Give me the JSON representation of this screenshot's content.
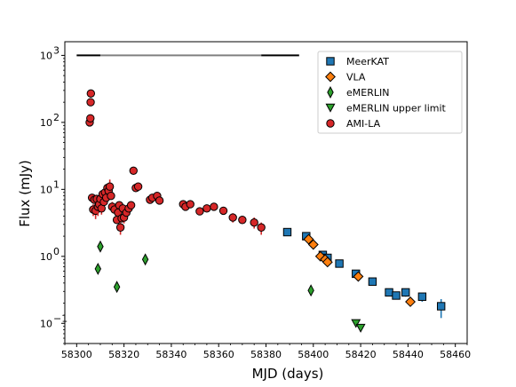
{
  "chart_data": {
    "type": "scatter",
    "title": "",
    "xlabel": "MJD (days)",
    "ylabel": "Flux (mJy)",
    "xlim": [
      58295,
      58465
    ],
    "ylim": [
      0.05,
      1600
    ],
    "yscale": "log",
    "x_ticks": [
      58300,
      58320,
      58340,
      58360,
      58380,
      58400,
      58420,
      58440,
      58460
    ],
    "x_tick_labels": [
      "58300",
      "58320",
      "58340",
      "58360",
      "58380",
      "58400",
      "58420",
      "58440",
      "58460"
    ],
    "y_ticks": [
      0.1,
      1,
      10,
      100,
      1000
    ],
    "y_tick_labels": [
      "10",
      "10",
      "10",
      "10",
      "10"
    ],
    "y_tick_exponents": [
      "−1",
      "0",
      "1",
      "2",
      "3"
    ],
    "grid": false,
    "legend_position": "top-right",
    "colors": {
      "meerkat": "#1f77b4",
      "vla": "#ff7f0e",
      "emerlin": "#2ca02c",
      "emerlin_upper": "#2ca02c",
      "amila": "#d62728",
      "coverage_dark": "#000000",
      "coverage_gray": "#808080"
    },
    "coverage_bar": {
      "y": 1000,
      "segments": [
        {
          "x0": 58300,
          "x1": 58310,
          "color": "coverage_dark"
        },
        {
          "x0": 58310,
          "x1": 58378,
          "color": "coverage_gray"
        },
        {
          "x0": 58378,
          "x1": 58394,
          "color": "coverage_dark"
        }
      ]
    },
    "series": [
      {
        "name": "MeerKAT",
        "marker": "square",
        "color_key": "meerkat",
        "points": [
          {
            "x": 58389,
            "y": 2.3
          },
          {
            "x": 58397,
            "y": 2.0
          },
          {
            "x": 58404,
            "y": 1.05
          },
          {
            "x": 58406,
            "y": 0.95
          },
          {
            "x": 58411,
            "y": 0.78
          },
          {
            "x": 58418,
            "y": 0.55
          },
          {
            "x": 58425,
            "y": 0.42
          },
          {
            "x": 58432,
            "y": 0.29
          },
          {
            "x": 58435,
            "y": 0.26
          },
          {
            "x": 58439,
            "y": 0.29,
            "err_lo": 0.04,
            "err_hi": 0.04
          },
          {
            "x": 58446,
            "y": 0.25,
            "err_lo": 0.04,
            "err_hi": 0.03
          },
          {
            "x": 58454,
            "y": 0.18,
            "err_lo": 0.06,
            "err_hi": 0.05
          }
        ]
      },
      {
        "name": "VLA",
        "marker": "diamond",
        "color_key": "vla",
        "points": [
          {
            "x": 58398,
            "y": 1.8
          },
          {
            "x": 58400,
            "y": 1.5
          },
          {
            "x": 58403,
            "y": 1.0
          },
          {
            "x": 58405,
            "y": 0.9
          },
          {
            "x": 58406,
            "y": 0.82
          },
          {
            "x": 58419,
            "y": 0.5
          },
          {
            "x": 58441,
            "y": 0.21
          }
        ]
      },
      {
        "name": "eMERLIN",
        "marker": "thin_diamond",
        "color_key": "emerlin",
        "points": [
          {
            "x": 58309,
            "y": 0.65
          },
          {
            "x": 58310,
            "y": 1.4
          },
          {
            "x": 58317,
            "y": 0.35
          },
          {
            "x": 58329,
            "y": 0.9
          },
          {
            "x": 58399,
            "y": 0.31
          }
        ]
      },
      {
        "name": "eMERLIN upper limit",
        "marker": "triangle_down",
        "color_key": "emerlin_upper",
        "points": [
          {
            "x": 58418,
            "y": 0.1
          },
          {
            "x": 58420,
            "y": 0.085
          }
        ]
      },
      {
        "name": "AMI-LA",
        "marker": "circle",
        "color_key": "amila",
        "points": [
          {
            "x": 58305.5,
            "y": 100
          },
          {
            "x": 58305.8,
            "y": 115
          },
          {
            "x": 58305.9,
            "y": 200
          },
          {
            "x": 58306.0,
            "y": 270
          },
          {
            "x": 58306.5,
            "y": 7.5
          },
          {
            "x": 58307,
            "y": 5.0,
            "err_lo": 1.0,
            "err_hi": 1.0
          },
          {
            "x": 58307.5,
            "y": 7.0
          },
          {
            "x": 58308,
            "y": 4.8,
            "err_lo": 1.2,
            "err_hi": 1.2
          },
          {
            "x": 58308.5,
            "y": 7.2
          },
          {
            "x": 58309,
            "y": 5.5,
            "err_lo": 1.5,
            "err_hi": 1.2
          },
          {
            "x": 58309.5,
            "y": 6.0
          },
          {
            "x": 58310,
            "y": 7.2
          },
          {
            "x": 58310.5,
            "y": 5.2,
            "err_lo": 1.0,
            "err_hi": 1.0
          },
          {
            "x": 58311,
            "y": 8.5
          },
          {
            "x": 58311.5,
            "y": 6.5
          },
          {
            "x": 58312,
            "y": 9.0
          },
          {
            "x": 58312.5,
            "y": 7.5
          },
          {
            "x": 58313,
            "y": 10.5
          },
          {
            "x": 58313.5,
            "y": 9.5
          },
          {
            "x": 58314,
            "y": 11.0,
            "err_lo": 2.5,
            "err_hi": 3.0
          },
          {
            "x": 58314.5,
            "y": 8.0
          },
          {
            "x": 58315,
            "y": 5.5,
            "err_lo": 1.0,
            "err_hi": 1.0
          },
          {
            "x": 58316,
            "y": 5.0
          },
          {
            "x": 58317,
            "y": 3.5
          },
          {
            "x": 58317.5,
            "y": 4.5,
            "err_lo": 1.0,
            "err_hi": 1.0
          },
          {
            "x": 58318,
            "y": 5.8
          },
          {
            "x": 58318.5,
            "y": 2.7,
            "err_lo": 0.6,
            "err_hi": 0.5
          },
          {
            "x": 58319,
            "y": 3.7
          },
          {
            "x": 58319.5,
            "y": 5.2
          },
          {
            "x": 58320,
            "y": 3.8,
            "err_lo": 0.7,
            "err_hi": 0.7
          },
          {
            "x": 58321,
            "y": 4.5
          },
          {
            "x": 58322,
            "y": 5.2
          },
          {
            "x": 58323,
            "y": 5.8
          },
          {
            "x": 58324,
            "y": 19.0
          },
          {
            "x": 58325,
            "y": 10.5
          },
          {
            "x": 58326,
            "y": 11.0
          },
          {
            "x": 58331,
            "y": 7.0
          },
          {
            "x": 58332,
            "y": 7.5
          },
          {
            "x": 58334,
            "y": 8.0
          },
          {
            "x": 58335,
            "y": 6.8
          },
          {
            "x": 58345,
            "y": 6.0
          },
          {
            "x": 58346,
            "y": 5.5
          },
          {
            "x": 58348,
            "y": 6.0
          },
          {
            "x": 58352,
            "y": 4.7
          },
          {
            "x": 58355,
            "y": 5.2
          },
          {
            "x": 58358,
            "y": 5.5
          },
          {
            "x": 58362,
            "y": 4.8
          },
          {
            "x": 58366,
            "y": 3.8,
            "err_lo": 0.6,
            "err_hi": 0.6
          },
          {
            "x": 58370,
            "y": 3.5
          },
          {
            "x": 58375,
            "y": 3.2,
            "err_lo": 0.6,
            "err_hi": 0.6
          },
          {
            "x": 58378,
            "y": 2.7,
            "err_lo": 0.6,
            "err_hi": 0.5
          }
        ]
      }
    ],
    "legend": [
      {
        "label": "MeerKAT",
        "marker": "square",
        "color_key": "meerkat"
      },
      {
        "label": "VLA",
        "marker": "diamond",
        "color_key": "vla"
      },
      {
        "label": "eMERLIN",
        "marker": "thin_diamond",
        "color_key": "emerlin"
      },
      {
        "label": "eMERLIN upper limit",
        "marker": "triangle_down",
        "color_key": "emerlin_upper"
      },
      {
        "label": "AMI-LA",
        "marker": "circle",
        "color_key": "amila"
      }
    ]
  }
}
